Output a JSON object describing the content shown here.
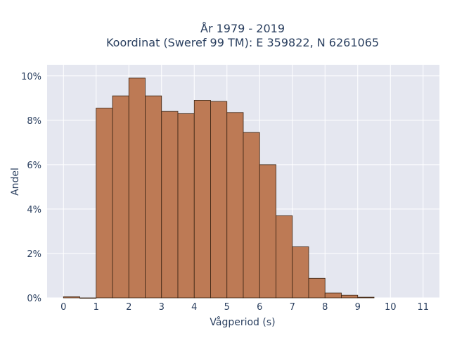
{
  "chart_data": {
    "type": "bar",
    "title_lines": [
      "År 1979 - 2019",
      "Koordinat (Sweref 99 TM): E 359822, N 6261065"
    ],
    "xlabel": "Vågperiod (s)",
    "ylabel": "Andel",
    "xlim": [
      -0.5,
      11.5
    ],
    "ylim": [
      0,
      10.5
    ],
    "x_ticks": [
      0,
      1,
      2,
      3,
      4,
      5,
      6,
      7,
      8,
      9,
      10,
      11
    ],
    "y_ticks": [
      0,
      2,
      4,
      6,
      8,
      10
    ],
    "y_tick_labels": [
      "0%",
      "2%",
      "4%",
      "6%",
      "8%",
      "10%"
    ],
    "bin_width": 0.5,
    "bins": [
      {
        "start": 0.0,
        "value": 0.05
      },
      {
        "start": 0.5,
        "value": 0.0
      },
      {
        "start": 1.0,
        "value": 8.55
      },
      {
        "start": 1.5,
        "value": 9.1
      },
      {
        "start": 2.0,
        "value": 9.9
      },
      {
        "start": 2.5,
        "value": 9.1
      },
      {
        "start": 3.0,
        "value": 8.4
      },
      {
        "start": 3.5,
        "value": 8.3
      },
      {
        "start": 4.0,
        "value": 8.9
      },
      {
        "start": 4.5,
        "value": 8.85
      },
      {
        "start": 5.0,
        "value": 8.35
      },
      {
        "start": 5.5,
        "value": 7.45
      },
      {
        "start": 6.0,
        "value": 6.0
      },
      {
        "start": 6.5,
        "value": 3.7
      },
      {
        "start": 7.0,
        "value": 2.3
      },
      {
        "start": 7.5,
        "value": 0.88
      },
      {
        "start": 8.0,
        "value": 0.22
      },
      {
        "start": 8.5,
        "value": 0.12
      },
      {
        "start": 9.0,
        "value": 0.03
      }
    ],
    "grid": true,
    "colors": {
      "bar_fill": "#bd7a55",
      "bar_edge": "#3a2413",
      "plot_bg": "#e5e7f0",
      "grid": "#ffffff",
      "text": "#2a3f5f"
    }
  }
}
